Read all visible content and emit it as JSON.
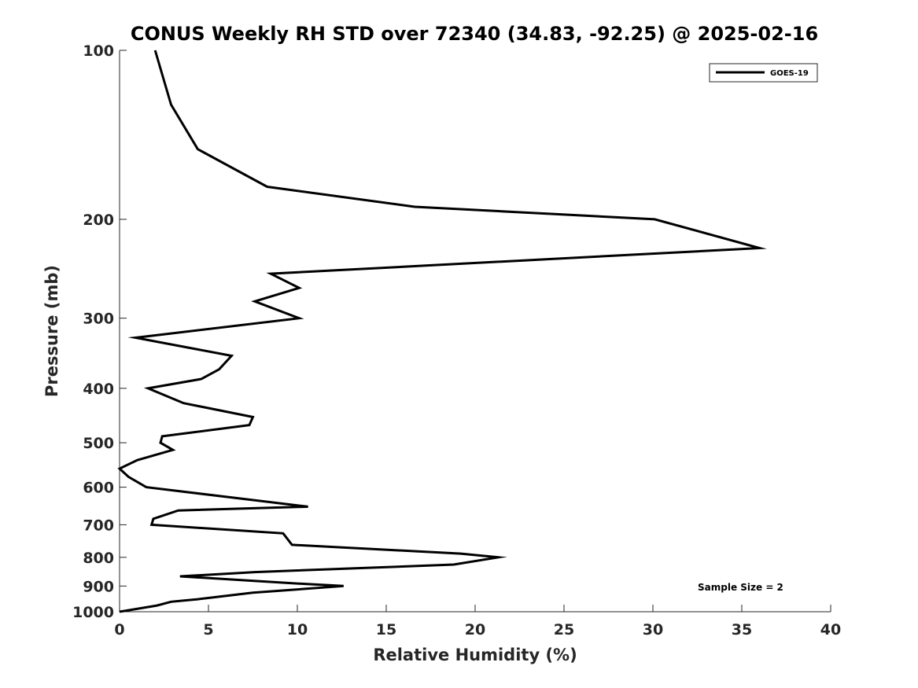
{
  "chart_data": {
    "type": "line",
    "title": "CONUS Weekly RH STD over 72340 (34.83, -92.25) @ 2025-02-16",
    "xlabel": "Relative Humidity (%)",
    "ylabel": "Pressure (mb)",
    "xlim": [
      0,
      40
    ],
    "ylim": [
      100,
      1000
    ],
    "y_scale": "log",
    "y_reversed": true,
    "x_ticks": [
      "0",
      "5",
      "10",
      "15",
      "20",
      "25",
      "30",
      "35",
      "40"
    ],
    "y_ticks": [
      "100",
      "200",
      "300",
      "400",
      "500",
      "600",
      "700",
      "800",
      "900",
      "1000"
    ],
    "grid": false,
    "legend_position": "top-right",
    "annotation": "Sample Size = 2",
    "series": [
      {
        "name": "GOES-19",
        "color": "#000000",
        "x": [
          2.0,
          2.9,
          4.4,
          8.3,
          16.6,
          30.1,
          36.0,
          8.5,
          10.1,
          7.6,
          10.1,
          0.9,
          6.3,
          5.6,
          4.6,
          1.6,
          3.6,
          7.5,
          7.3,
          2.4,
          2.3,
          3.0,
          1.0,
          0.0,
          0.5,
          1.5,
          10.6,
          3.3,
          1.9,
          1.8,
          9.2,
          9.7,
          19.2,
          21.3,
          18.8,
          7.6,
          3.4,
          9.8,
          12.6,
          7.5,
          4.4,
          2.9,
          2.1,
          0.0
        ],
        "y": [
          100,
          125,
          150,
          175,
          190,
          200,
          225,
          250,
          265,
          280,
          300,
          325,
          350,
          370,
          385,
          400,
          425,
          450,
          465,
          487,
          500,
          515,
          537,
          556,
          575,
          600,
          650,
          660,
          683,
          700,
          725,
          760,
          788,
          800,
          824,
          850,
          865,
          890,
          900,
          925,
          950,
          960,
          975,
          1000
        ]
      }
    ]
  }
}
